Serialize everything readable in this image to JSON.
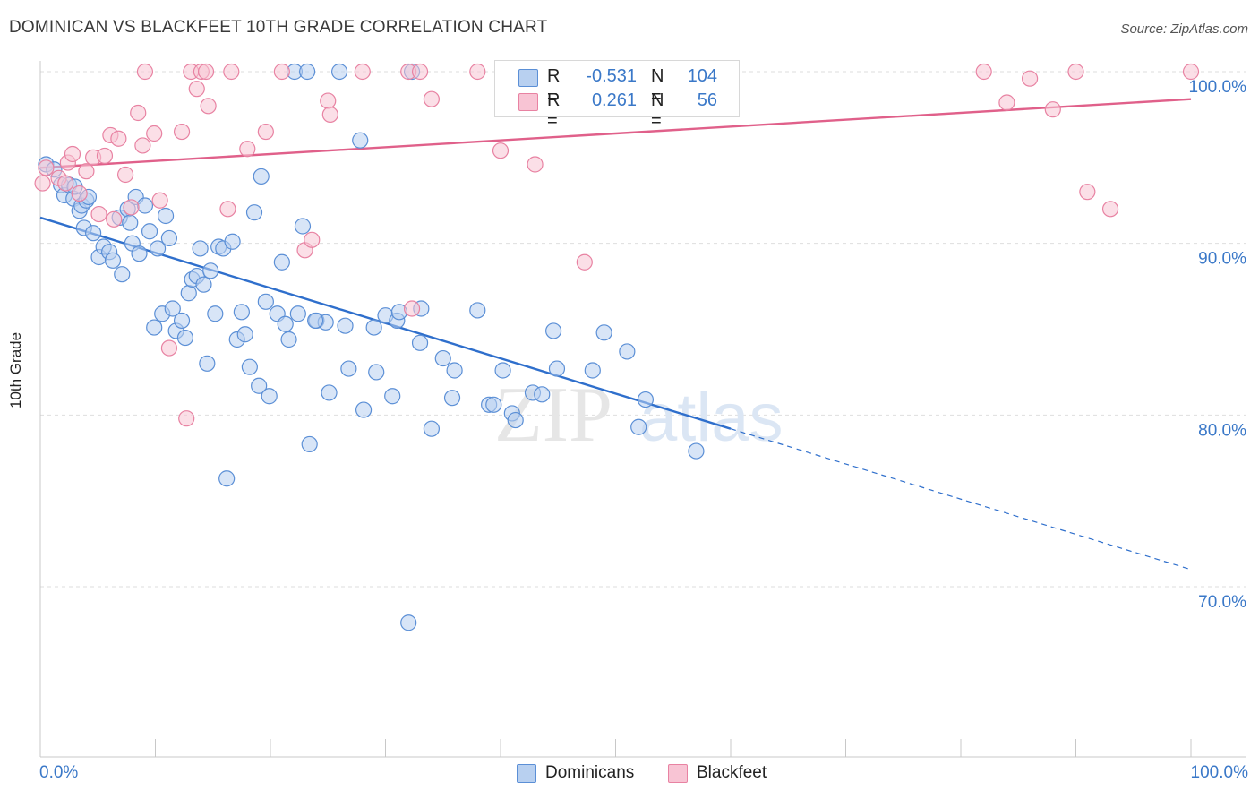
{
  "chart_data": {
    "type": "scatter",
    "title": "DOMINICAN VS BLACKFEET 10TH GRADE CORRELATION CHART",
    "source": "Source: ZipAtlas.com",
    "ylabel": "10th Grade",
    "xlabel": "",
    "xlim": [
      0,
      100
    ],
    "ylim": [
      60.5,
      101.5
    ],
    "x_tick_labels": {
      "min": "0.0%",
      "max": "100.0%"
    },
    "y_ticks": [
      {
        "value": 100,
        "label": "100.0%"
      },
      {
        "value": 90,
        "label": "90.0%"
      },
      {
        "value": 80,
        "label": "80.0%"
      },
      {
        "value": 70,
        "label": "70.0%"
      }
    ],
    "grid": "horizontal dashed",
    "watermark": "ZIPatlas",
    "legend_position": "top-center",
    "series": [
      {
        "name": "Dominicans",
        "color": "#5b8fd6",
        "fill": "#b8d0f0",
        "R": "-0.531",
        "N": "104",
        "trend": {
          "x0": 0,
          "y0": 91.5,
          "x1": 60,
          "y1": 79.2,
          "x_dash_end": 100
        },
        "points": [
          [
            0.5,
            94.6
          ],
          [
            1.2,
            94.3
          ],
          [
            1.8,
            93.4
          ],
          [
            2.1,
            92.8
          ],
          [
            2.5,
            93.4
          ],
          [
            2.9,
            92.6
          ],
          [
            3.0,
            93.3
          ],
          [
            3.4,
            91.9
          ],
          [
            3.6,
            92.2
          ],
          [
            3.8,
            90.9
          ],
          [
            4.0,
            92.5
          ],
          [
            4.2,
            92.7
          ],
          [
            4.6,
            90.6
          ],
          [
            5.1,
            89.2
          ],
          [
            5.5,
            89.8
          ],
          [
            6.0,
            89.5
          ],
          [
            6.3,
            89.0
          ],
          [
            6.9,
            91.5
          ],
          [
            7.1,
            88.2
          ],
          [
            7.6,
            92.0
          ],
          [
            7.8,
            91.2
          ],
          [
            8.0,
            90.0
          ],
          [
            8.3,
            92.7
          ],
          [
            8.6,
            89.4
          ],
          [
            9.1,
            92.2
          ],
          [
            9.5,
            90.7
          ],
          [
            9.9,
            85.1
          ],
          [
            10.2,
            89.7
          ],
          [
            10.6,
            85.9
          ],
          [
            10.9,
            91.6
          ],
          [
            11.2,
            90.3
          ],
          [
            11.5,
            86.2
          ],
          [
            11.8,
            84.9
          ],
          [
            12.3,
            85.5
          ],
          [
            12.6,
            84.5
          ],
          [
            12.9,
            87.1
          ],
          [
            13.2,
            87.9
          ],
          [
            13.6,
            88.1
          ],
          [
            13.9,
            89.7
          ],
          [
            14.2,
            87.6
          ],
          [
            14.5,
            83.0
          ],
          [
            14.8,
            88.4
          ],
          [
            15.2,
            85.9
          ],
          [
            15.5,
            89.8
          ],
          [
            15.9,
            89.7
          ],
          [
            16.2,
            76.3
          ],
          [
            16.7,
            90.1
          ],
          [
            17.1,
            84.4
          ],
          [
            17.5,
            86.0
          ],
          [
            17.8,
            84.7
          ],
          [
            18.2,
            82.8
          ],
          [
            18.6,
            91.8
          ],
          [
            19.0,
            81.7
          ],
          [
            19.2,
            93.9
          ],
          [
            19.6,
            86.6
          ],
          [
            19.9,
            81.1
          ],
          [
            20.6,
            85.9
          ],
          [
            21.0,
            88.9
          ],
          [
            21.3,
            85.3
          ],
          [
            21.6,
            84.4
          ],
          [
            22.1,
            100
          ],
          [
            22.4,
            85.9
          ],
          [
            22.8,
            91.0
          ],
          [
            23.2,
            100
          ],
          [
            23.4,
            78.3
          ],
          [
            24.0,
            85.5
          ],
          [
            24.8,
            85.4
          ],
          [
            25.1,
            81.3
          ],
          [
            26.0,
            100
          ],
          [
            26.8,
            82.7
          ],
          [
            27.8,
            96.0
          ],
          [
            28.1,
            80.3
          ],
          [
            29.0,
            85.1
          ],
          [
            29.2,
            82.5
          ],
          [
            30.0,
            85.8
          ],
          [
            30.6,
            81.1
          ],
          [
            31.0,
            85.5
          ],
          [
            31.2,
            86.0
          ],
          [
            32.0,
            67.9
          ],
          [
            32.3,
            100
          ],
          [
            33.0,
            84.2
          ],
          [
            33.1,
            86.2
          ],
          [
            34.0,
            79.2
          ],
          [
            35.0,
            83.3
          ],
          [
            36.0,
            82.6
          ],
          [
            38.0,
            86.1
          ],
          [
            39.0,
            80.6
          ],
          [
            40.2,
            82.6
          ],
          [
            41.0,
            80.1
          ],
          [
            41.3,
            79.7
          ],
          [
            42.8,
            81.3
          ],
          [
            43.6,
            81.2
          ],
          [
            44.6,
            84.9
          ],
          [
            44.9,
            82.7
          ],
          [
            48.0,
            82.6
          ],
          [
            49.0,
            84.8
          ],
          [
            51.0,
            83.7
          ],
          [
            52.0,
            79.3
          ],
          [
            52.6,
            80.9
          ],
          [
            57.0,
            77.9
          ],
          [
            39.4,
            80.6
          ],
          [
            23.9,
            85.5
          ],
          [
            35.8,
            81.0
          ],
          [
            26.5,
            85.2
          ]
        ]
      },
      {
        "name": "Blackfeet",
        "color": "#e882a2",
        "fill": "#f8c4d4",
        "R": "0.261",
        "N": "56",
        "trend": {
          "x0": 0,
          "y0": 94.4,
          "x1": 100,
          "y1": 98.4
        },
        "points": [
          [
            0.2,
            93.5
          ],
          [
            0.5,
            94.4
          ],
          [
            1.6,
            93.8
          ],
          [
            2.2,
            93.5
          ],
          [
            2.4,
            94.7
          ],
          [
            2.8,
            95.2
          ],
          [
            3.4,
            92.9
          ],
          [
            4.0,
            94.2
          ],
          [
            4.6,
            95.0
          ],
          [
            5.1,
            91.7
          ],
          [
            5.6,
            95.1
          ],
          [
            6.1,
            96.3
          ],
          [
            6.4,
            91.4
          ],
          [
            6.8,
            96.1
          ],
          [
            7.4,
            94.0
          ],
          [
            7.9,
            92.1
          ],
          [
            8.5,
            97.6
          ],
          [
            8.9,
            95.7
          ],
          [
            9.1,
            100
          ],
          [
            9.9,
            96.4
          ],
          [
            10.4,
            92.5
          ],
          [
            11.2,
            83.9
          ],
          [
            12.3,
            96.5
          ],
          [
            12.7,
            79.8
          ],
          [
            13.1,
            100
          ],
          [
            13.6,
            99.0
          ],
          [
            14.0,
            100
          ],
          [
            14.4,
            100
          ],
          [
            14.6,
            98.0
          ],
          [
            16.3,
            92.0
          ],
          [
            16.6,
            100
          ],
          [
            18.0,
            95.5
          ],
          [
            19.6,
            96.5
          ],
          [
            21.0,
            100
          ],
          [
            23.0,
            89.6
          ],
          [
            23.6,
            90.2
          ],
          [
            25.0,
            98.3
          ],
          [
            25.2,
            97.5
          ],
          [
            28.0,
            100
          ],
          [
            32.0,
            100
          ],
          [
            32.3,
            86.2
          ],
          [
            33.0,
            100
          ],
          [
            34.0,
            98.4
          ],
          [
            38.0,
            100
          ],
          [
            40.0,
            95.4
          ],
          [
            43.0,
            94.6
          ],
          [
            47.0,
            100
          ],
          [
            47.3,
            88.9
          ],
          [
            82.0,
            100
          ],
          [
            84.0,
            98.2
          ],
          [
            86.0,
            99.6
          ],
          [
            88.0,
            97.8
          ],
          [
            90.0,
            100
          ],
          [
            91.0,
            93.0
          ],
          [
            93.0,
            92.0
          ],
          [
            100,
            100
          ]
        ]
      }
    ]
  }
}
